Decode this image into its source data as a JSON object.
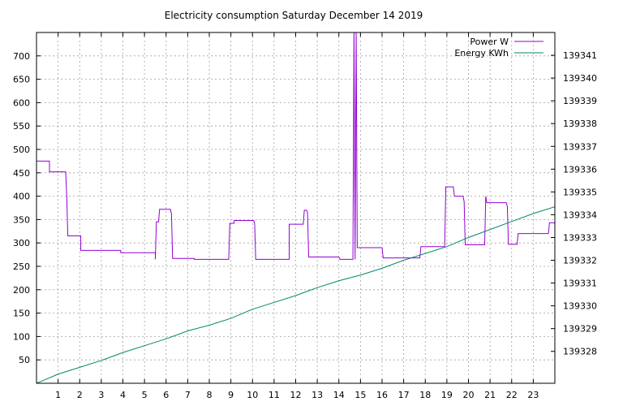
{
  "chart_data": {
    "type": "line",
    "title": "Electricity consumption Saturday December 14 2019",
    "xlabel": "",
    "ylabel": "",
    "y2label": "",
    "xlim": [
      0,
      24
    ],
    "ylim": [
      0,
      750
    ],
    "y2lim": [
      139326.6,
      139342.0
    ],
    "grid": true,
    "legend_position": "top-right",
    "x_ticks": [
      1,
      2,
      3,
      4,
      5,
      6,
      7,
      8,
      9,
      10,
      11,
      12,
      13,
      14,
      15,
      16,
      17,
      18,
      19,
      20,
      21,
      22,
      23
    ],
    "y_ticks": [
      50,
      100,
      150,
      200,
      250,
      300,
      350,
      400,
      450,
      500,
      550,
      600,
      650,
      700
    ],
    "y2_ticks": [
      139328,
      139329,
      139330,
      139331,
      139332,
      139333,
      139334,
      139335,
      139336,
      139337,
      139338,
      139339,
      139340,
      139341
    ],
    "series": [
      {
        "name": "Power W",
        "axis": "y",
        "color": "#9400d3",
        "step": true,
        "points": [
          [
            0,
            475
          ],
          [
            0.6,
            475
          ],
          [
            0.6,
            452
          ],
          [
            1.35,
            452
          ],
          [
            1.4,
            400
          ],
          [
            1.45,
            315
          ],
          [
            2.05,
            315
          ],
          [
            2.05,
            284
          ],
          [
            3.9,
            284
          ],
          [
            3.9,
            279
          ],
          [
            5.5,
            279
          ],
          [
            5.5,
            265
          ],
          [
            5.55,
            345
          ],
          [
            5.65,
            345
          ],
          [
            5.7,
            372
          ],
          [
            6.2,
            372
          ],
          [
            6.25,
            362
          ],
          [
            6.3,
            267
          ],
          [
            7.3,
            267
          ],
          [
            7.3,
            265
          ],
          [
            8.9,
            265
          ],
          [
            8.95,
            342
          ],
          [
            9.15,
            342
          ],
          [
            9.15,
            348
          ],
          [
            10.05,
            348
          ],
          [
            10.1,
            342
          ],
          [
            10.15,
            265
          ],
          [
            11.7,
            265
          ],
          [
            11.7,
            340
          ],
          [
            12.35,
            340
          ],
          [
            12.4,
            370
          ],
          [
            12.5,
            370
          ],
          [
            12.55,
            365
          ],
          [
            12.6,
            270
          ],
          [
            14.0,
            270
          ],
          [
            14.05,
            265
          ],
          [
            14.65,
            265
          ],
          [
            14.7,
            760
          ],
          [
            14.75,
            265
          ],
          [
            14.8,
            760
          ],
          [
            14.85,
            290
          ],
          [
            16.0,
            290
          ],
          [
            16.05,
            268
          ],
          [
            17.75,
            268
          ],
          [
            17.8,
            292
          ],
          [
            18.9,
            292
          ],
          [
            18.95,
            420
          ],
          [
            19.3,
            420
          ],
          [
            19.35,
            400
          ],
          [
            19.75,
            400
          ],
          [
            19.8,
            388
          ],
          [
            19.85,
            296
          ],
          [
            20.75,
            296
          ],
          [
            20.8,
            400
          ],
          [
            20.85,
            386
          ],
          [
            21.75,
            386
          ],
          [
            21.8,
            378
          ],
          [
            21.85,
            297
          ],
          [
            22.25,
            297
          ],
          [
            22.3,
            320
          ],
          [
            23.7,
            320
          ],
          [
            23.75,
            343
          ],
          [
            24,
            343
          ]
        ]
      },
      {
        "name": "Energy KWh",
        "axis": "y2",
        "color": "#00876c",
        "step": false,
        "points": [
          [
            0,
            139326.6
          ],
          [
            1.0,
            139327.0
          ],
          [
            2.0,
            139327.3
          ],
          [
            3.0,
            139327.6
          ],
          [
            4.0,
            139327.95
          ],
          [
            5.0,
            139328.25
          ],
          [
            6.0,
            139328.55
          ],
          [
            7.0,
            139328.9
          ],
          [
            8.0,
            139329.15
          ],
          [
            9.0,
            139329.45
          ],
          [
            10.0,
            139329.85
          ],
          [
            11.0,
            139330.15
          ],
          [
            12.0,
            139330.45
          ],
          [
            13.0,
            139330.8
          ],
          [
            14.0,
            139331.1
          ],
          [
            15.0,
            139331.35
          ],
          [
            16.0,
            139331.65
          ],
          [
            17.0,
            139332.0
          ],
          [
            18.0,
            139332.3
          ],
          [
            19.0,
            139332.6
          ],
          [
            20.0,
            139333.0
          ],
          [
            21.0,
            139333.35
          ],
          [
            22.0,
            139333.7
          ],
          [
            23.0,
            139334.05
          ],
          [
            24.0,
            139334.35
          ]
        ]
      }
    ]
  }
}
